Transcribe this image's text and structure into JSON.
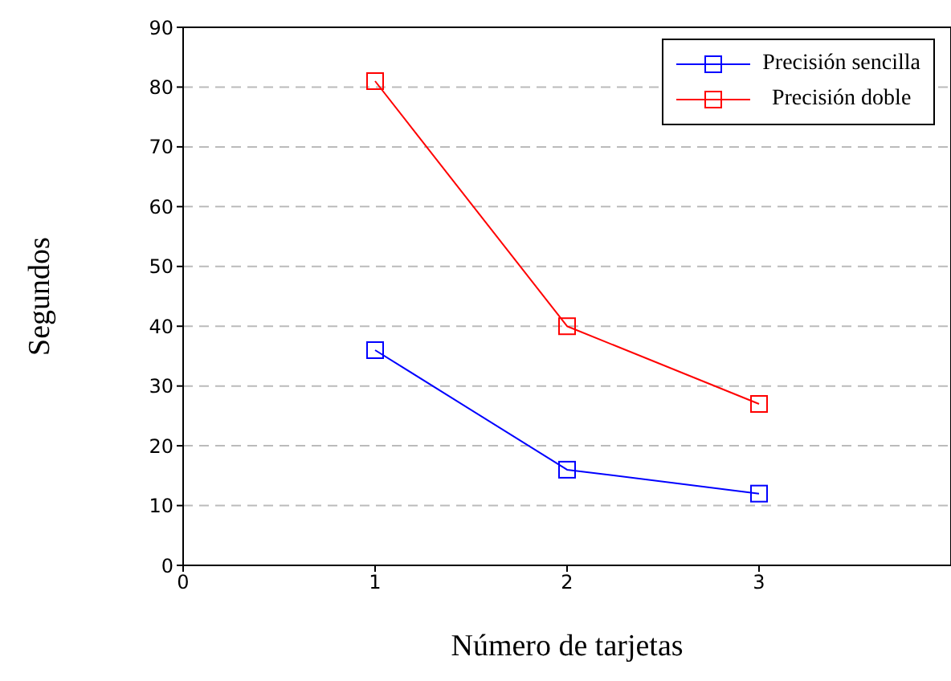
{
  "chart_data": {
    "type": "line",
    "xlabel": "Número de tarjetas",
    "ylabel": "Segundos",
    "x": [
      1,
      2,
      3
    ],
    "series": [
      {
        "name": "Precisión sencilla",
        "color": "#0000ff",
        "values": [
          36,
          16,
          12
        ]
      },
      {
        "name": "Precisión doble",
        "color": "#ff0000",
        "values": [
          81,
          40,
          27
        ]
      }
    ],
    "xlim": [
      0,
      4
    ],
    "xticks": [
      0,
      1,
      2,
      3
    ],
    "ylim": [
      0,
      90
    ],
    "yticks": [
      0,
      10,
      20,
      30,
      40,
      50,
      60,
      70,
      80,
      90
    ],
    "grid": "y",
    "legend": "top right",
    "marker": "square",
    "line_style": "solid"
  }
}
